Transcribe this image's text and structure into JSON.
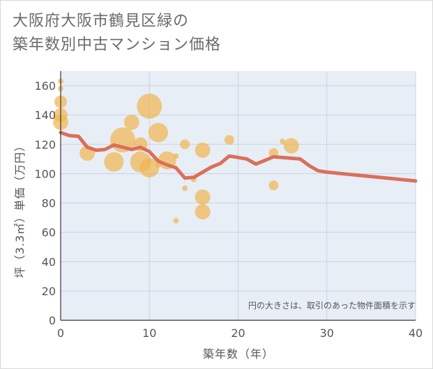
{
  "title_line1": "大阪府大阪市鶴見区緑の",
  "title_line2": "築年数別中古マンション価格",
  "chart_data": {
    "type": "scatter",
    "xlabel": "築年数（年）",
    "ylabel": "坪（3.3㎡）単価（万円）",
    "xlim": [
      0,
      40
    ],
    "ylim": [
      0,
      170
    ],
    "x_ticks": [
      "0",
      "10",
      "20",
      "30",
      "40"
    ],
    "y_ticks": [
      "0",
      "20",
      "40",
      "60",
      "80",
      "100",
      "120",
      "140",
      "160"
    ],
    "grid": true,
    "note": "円の大きさは、取引のあった物件面積を示す",
    "bubble_color": "#f0b24a",
    "line_color": "#d9705a",
    "bubbles": [
      {
        "x": 0,
        "y": 163,
        "s": 4
      },
      {
        "x": 0,
        "y": 158,
        "s": 4
      },
      {
        "x": 0,
        "y": 149,
        "s": 9
      },
      {
        "x": 0,
        "y": 140,
        "s": 10
      },
      {
        "x": 0,
        "y": 135,
        "s": 11
      },
      {
        "x": 3,
        "y": 114,
        "s": 11
      },
      {
        "x": 6,
        "y": 108,
        "s": 14
      },
      {
        "x": 7,
        "y": 123,
        "s": 18
      },
      {
        "x": 8,
        "y": 135,
        "s": 11
      },
      {
        "x": 9,
        "y": 120,
        "s": 10
      },
      {
        "x": 9,
        "y": 108,
        "s": 15
      },
      {
        "x": 10,
        "y": 146,
        "s": 18
      },
      {
        "x": 10,
        "y": 104,
        "s": 14
      },
      {
        "x": 11,
        "y": 128,
        "s": 14
      },
      {
        "x": 11,
        "y": 106,
        "s": 4
      },
      {
        "x": 12,
        "y": 109,
        "s": 13
      },
      {
        "x": 13,
        "y": 68,
        "s": 4
      },
      {
        "x": 13,
        "y": 112,
        "s": 4
      },
      {
        "x": 14,
        "y": 120,
        "s": 7
      },
      {
        "x": 14,
        "y": 90,
        "s": 4
      },
      {
        "x": 16,
        "y": 116,
        "s": 11
      },
      {
        "x": 16,
        "y": 84,
        "s": 11
      },
      {
        "x": 16,
        "y": 74,
        "s": 11
      },
      {
        "x": 15,
        "y": 96,
        "s": 4
      },
      {
        "x": 19,
        "y": 123,
        "s": 7
      },
      {
        "x": 24,
        "y": 114,
        "s": 7
      },
      {
        "x": 24,
        "y": 92,
        "s": 7
      },
      {
        "x": 25,
        "y": 122,
        "s": 4
      },
      {
        "x": 26,
        "y": 119,
        "s": 11
      }
    ],
    "series": [
      {
        "x": [
          0,
          1,
          2,
          3,
          4,
          5,
          6,
          7,
          8,
          9,
          10,
          11,
          12,
          13,
          14,
          15,
          16,
          17,
          18,
          19,
          20,
          21,
          22,
          23,
          24,
          25,
          26,
          27,
          28,
          29,
          30,
          40
        ],
        "y": [
          128,
          126,
          125.5,
          118,
          116,
          116.5,
          119.5,
          118,
          116.5,
          118,
          115,
          108.5,
          106,
          104,
          97,
          97.5,
          101,
          104.5,
          107,
          112,
          111,
          110,
          106.5,
          109,
          111.5,
          111,
          110.5,
          110,
          105.5,
          102,
          101,
          95
        ]
      }
    ]
  }
}
